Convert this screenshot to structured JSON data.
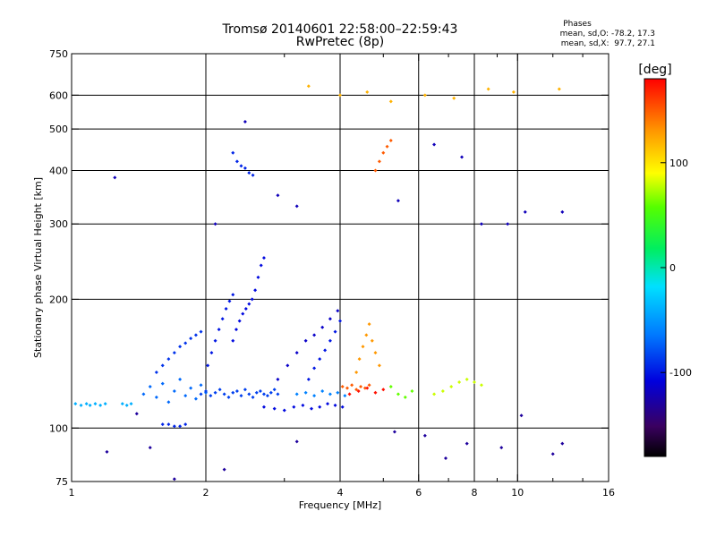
{
  "header": {
    "title": "Tromsø 20140601 22:58:00–22:59:43",
    "subtitle": "RwPretec (8p)",
    "stats_title": "Phases",
    "stats_line1": "mean, sd,O: -78.2, 17.3",
    "stats_line2": "mean, sd,X:  97.7, 27.1"
  },
  "colorbar": {
    "label": "[deg]",
    "range": [
      -180,
      180
    ],
    "ticks": [
      {
        "value": 100,
        "label": "100"
      },
      {
        "value": 0,
        "label": "0"
      },
      {
        "value": -100,
        "label": "-100"
      }
    ]
  },
  "chart_data": {
    "type": "scatter",
    "title": "Tromsø 20140601 22:58:00–22:59:43",
    "subtitle": "RwPretec (8p)",
    "xlabel": "Frequency [MHz]",
    "ylabel": "Stationary phase Virtual Height [km]",
    "x_scale": "log",
    "y_scale": "log",
    "xlim": [
      1,
      16
    ],
    "ylim": [
      75,
      750
    ],
    "xticks": [
      {
        "value": 1,
        "label": "1"
      },
      {
        "value": 2,
        "label": "2"
      },
      {
        "value": 4,
        "label": "4"
      },
      {
        "value": 6,
        "label": "6"
      },
      {
        "value": 8,
        "label": "8"
      },
      {
        "value": 10,
        "label": "10"
      },
      {
        "value": 16,
        "label": "16"
      }
    ],
    "yticks": [
      {
        "value": 75,
        "label": "75"
      },
      {
        "value": 100,
        "label": "100"
      },
      {
        "value": 200,
        "label": "200"
      },
      {
        "value": 300,
        "label": "300"
      },
      {
        "value": 400,
        "label": "400"
      },
      {
        "value": 500,
        "label": "500"
      },
      {
        "value": 600,
        "label": "600"
      },
      {
        "value": 750,
        "label": "750"
      }
    ],
    "grid_x": [
      2,
      4,
      6,
      8,
      10
    ],
    "grid_y": [
      100,
      200,
      300,
      400,
      500,
      600
    ],
    "color_variable": "phase [deg]",
    "color_range": [
      -180,
      180
    ],
    "series": [
      {
        "x": [
          1.02,
          1.05,
          1.08,
          1.1,
          1.13,
          1.16,
          1.19,
          1.3,
          1.33,
          1.36
        ],
        "y": [
          114,
          113,
          114,
          113,
          114,
          113,
          114,
          114,
          113,
          114
        ],
        "phase": -40
      },
      {
        "x": [
          1.45,
          1.5,
          1.55,
          1.6,
          1.65,
          1.7,
          1.75,
          1.8,
          1.85,
          1.9,
          1.95,
          2.0
        ],
        "y": [
          120,
          125,
          118,
          127,
          115,
          122,
          130,
          119,
          124,
          117,
          126,
          121
        ],
        "phase": -70
      },
      {
        "x": [
          1.55,
          1.6,
          1.65,
          1.7,
          1.75,
          1.8,
          1.85,
          1.9,
          1.95
        ],
        "y": [
          135,
          140,
          145,
          150,
          155,
          158,
          162,
          165,
          168
        ],
        "phase": -90
      },
      {
        "x": [
          1.6,
          1.65,
          1.7,
          1.75,
          1.8
        ],
        "y": [
          102,
          102,
          101,
          101,
          102
        ],
        "phase": -95
      },
      {
        "x": [
          1.95,
          2.0,
          2.05,
          2.1,
          2.15,
          2.2,
          2.25,
          2.3,
          2.35,
          2.4,
          2.45,
          2.5,
          2.55,
          2.6,
          2.65,
          2.7,
          2.75,
          2.8,
          2.85,
          2.9
        ],
        "y": [
          120,
          122,
          119,
          121,
          123,
          120,
          118,
          121,
          122,
          119,
          123,
          120,
          118,
          121,
          122,
          120,
          119,
          121,
          123,
          120
        ],
        "phase": -85
      },
      {
        "x": [
          2.02,
          2.06,
          2.1,
          2.14,
          2.18,
          2.22,
          2.26,
          2.3
        ],
        "y": [
          140,
          150,
          160,
          170,
          180,
          190,
          198,
          205
        ],
        "phase": -100
      },
      {
        "x": [
          2.3,
          2.34,
          2.38,
          2.42,
          2.46,
          2.5,
          2.54,
          2.58,
          2.62,
          2.66,
          2.7
        ],
        "y": [
          160,
          170,
          178,
          185,
          190,
          195,
          200,
          210,
          225,
          240,
          250
        ],
        "phase": -105
      },
      {
        "x": [
          2.3,
          2.35,
          2.4,
          2.45,
          2.5,
          2.55
        ],
        "y": [
          440,
          420,
          410,
          405,
          395,
          390
        ],
        "phase": -95
      },
      {
        "x": [
          2.7,
          2.85,
          3.0,
          3.15,
          3.3,
          3.45,
          3.6,
          3.75,
          3.9,
          4.05
        ],
        "y": [
          112,
          111,
          110,
          112,
          113,
          111,
          112,
          114,
          113,
          112
        ],
        "phase": -105
      },
      {
        "x": [
          2.9,
          3.05,
          3.2,
          3.35,
          3.5,
          3.65,
          3.8,
          3.95
        ],
        "y": [
          130,
          140,
          150,
          160,
          165,
          172,
          180,
          188
        ],
        "phase": -115
      },
      {
        "x": [
          3.4,
          3.5,
          3.6,
          3.7,
          3.8,
          3.9,
          4.0
        ],
        "y": [
          130,
          138,
          145,
          152,
          160,
          168,
          178
        ],
        "phase": -100
      },
      {
        "x": [
          3.2,
          3.35,
          3.5,
          3.65,
          3.8,
          3.95,
          4.1
        ],
        "y": [
          120,
          121,
          119,
          122,
          120,
          121,
          119
        ],
        "phase": -60
      },
      {
        "x": [
          4.05,
          4.15,
          4.25,
          4.35,
          4.45,
          4.55,
          4.65
        ],
        "y": [
          125,
          124,
          126,
          123,
          125,
          124,
          126
        ],
        "phase": 150
      },
      {
        "x": [
          4.35,
          4.42,
          4.5,
          4.58,
          4.65,
          4.72,
          4.8,
          4.9
        ],
        "y": [
          135,
          145,
          155,
          165,
          175,
          160,
          150,
          140
        ],
        "phase": 130
      },
      {
        "x": [
          4.2,
          4.4,
          4.6,
          4.8,
          5.0
        ],
        "y": [
          120,
          122,
          124,
          121,
          123
        ],
        "phase": 175
      },
      {
        "x": [
          4.8,
          4.9,
          5.0,
          5.1,
          5.2
        ],
        "y": [
          400,
          420,
          440,
          455,
          470
        ],
        "phase": 150
      },
      {
        "x": [
          5.2,
          5.4,
          5.6,
          5.8
        ],
        "y": [
          125,
          120,
          118,
          122
        ],
        "phase": 60
      },
      {
        "x": [
          6.5,
          6.8,
          7.1,
          7.4,
          7.7,
          8.0,
          8.3
        ],
        "y": [
          120,
          122,
          125,
          128,
          130,
          128,
          126
        ],
        "phase": 80
      },
      {
        "x": [
          3.4,
          4.0,
          4.6,
          5.2,
          6.2,
          7.2,
          8.6,
          9.8,
          12.4
        ],
        "y": [
          630,
          600,
          610,
          580,
          600,
          590,
          620,
          610,
          620
        ],
        "phase": 120
      },
      {
        "x": [
          1.25,
          2.1,
          2.45,
          2.9,
          3.2,
          5.4,
          6.5,
          7.5,
          8.3,
          9.5,
          10.4,
          12.6
        ],
        "y": [
          385,
          300,
          520,
          350,
          330,
          340,
          460,
          430,
          300,
          300,
          320,
          320
        ],
        "phase": -120
      },
      {
        "x": [
          1.2,
          1.4,
          1.5,
          1.7,
          2.2,
          3.2,
          5.3,
          6.2,
          6.9,
          7.7,
          9.2,
          10.2,
          12.0,
          12.6
        ],
        "y": [
          88,
          108,
          90,
          76,
          80,
          93,
          98,
          96,
          85,
          92,
          90,
          107,
          87,
          92
        ],
        "phase": -130
      }
    ]
  }
}
